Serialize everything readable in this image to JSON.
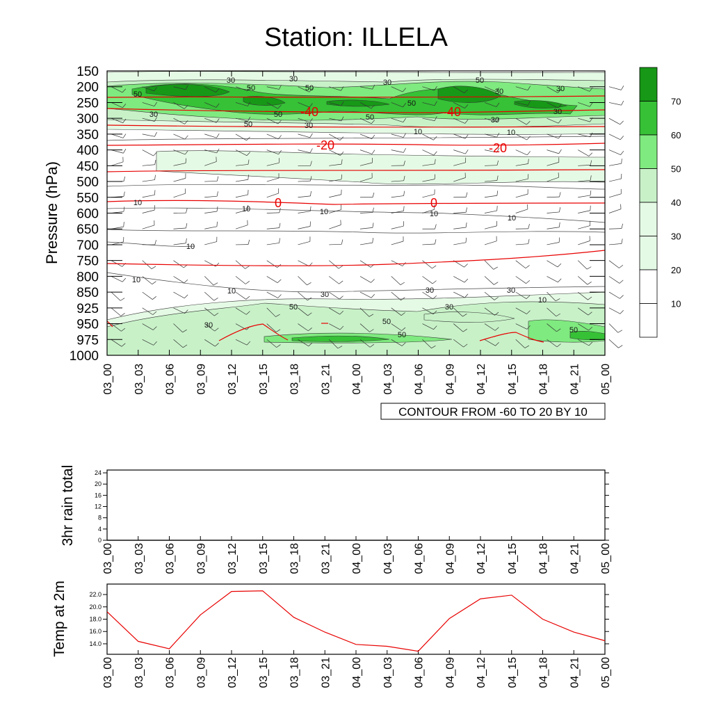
{
  "title": "Station: ILLELA",
  "colors": {
    "shade": [
      "#ffffff",
      "#e5fae5",
      "#c8f1c8",
      "#7fea7f",
      "#36c136",
      "#179817"
    ],
    "temp_line": "#e80000",
    "axis": "#000000"
  },
  "time_labels": [
    "03_00",
    "03_03",
    "03_06",
    "03_09",
    "03_12",
    "03_15",
    "03_18",
    "03_21",
    "04_00",
    "04_03",
    "04_06",
    "04_09",
    "04_12",
    "04_15",
    "04_18",
    "04_21",
    "05_00"
  ],
  "chart_data": [
    {
      "type": "heatmap",
      "name": "wind-speed-and-temperature-cross-section",
      "ylabel": "Pressure (hPa)",
      "pressure_levels": [
        150,
        200,
        250,
        300,
        350,
        400,
        450,
        500,
        550,
        600,
        650,
        700,
        750,
        800,
        850,
        925,
        950,
        975,
        1000
      ],
      "y_direction": "decreasing-upward",
      "x_labels_ref": "time_labels",
      "shading_description": "wind speed contours (filled, green) with wind barbs",
      "shade_bar_ticks": [
        "10",
        "20",
        "30",
        "40",
        "50",
        "60",
        "70"
      ],
      "temperature_contour_labels": [
        "-40",
        "-40",
        "-20",
        "-20",
        "0",
        "0"
      ],
      "speed_contour_labels": [
        "30",
        "30",
        "30",
        "50",
        "50",
        "50",
        "30",
        "50",
        "30",
        "50",
        "50",
        "50",
        "30",
        "30",
        "50",
        "30",
        "30",
        "10",
        "10",
        "10",
        "10",
        "10",
        "10",
        "10",
        "10",
        "10",
        "10",
        "30",
        "30",
        "30",
        "50",
        "30",
        "10",
        "30",
        "50"
      ],
      "contour_info": "CONTOUR FROM -60 TO 20 BY 10"
    },
    {
      "type": "line",
      "name": "3hr-rain-total",
      "ylabel": "3hr rain total",
      "x": [
        "03_00",
        "03_03",
        "03_06",
        "03_09",
        "03_12",
        "03_15",
        "03_18",
        "03_21",
        "04_00",
        "04_03",
        "04_06",
        "04_09",
        "04_12",
        "04_15",
        "04_18",
        "04_21",
        "05_00"
      ],
      "values": [
        0,
        0,
        0,
        0,
        0,
        0,
        0,
        0,
        0,
        0,
        0,
        0,
        0,
        0,
        0,
        0,
        0
      ],
      "ylim": [
        0,
        25
      ],
      "yticks": [
        "0",
        "4",
        "8",
        "12",
        "16",
        "20",
        "24"
      ]
    },
    {
      "type": "line",
      "name": "temp-at-2m",
      "ylabel": "Temp at 2m",
      "x": [
        "03_00",
        "03_03",
        "03_06",
        "03_09",
        "03_12",
        "03_15",
        "03_18",
        "03_21",
        "04_00",
        "04_03",
        "04_06",
        "04_09",
        "04_12",
        "04_15",
        "04_18",
        "04_21",
        "05_00"
      ],
      "values": [
        19.2,
        14.4,
        13.2,
        18.7,
        22.5,
        22.6,
        18.3,
        15.9,
        13.9,
        13.6,
        12.8,
        18.1,
        21.3,
        21.9,
        18.0,
        15.9,
        14.5
      ],
      "ylim": [
        12.3,
        23.7
      ],
      "yticks": [
        "14.0",
        "16.0",
        "18.0",
        "20.0",
        "22.0"
      ]
    }
  ]
}
